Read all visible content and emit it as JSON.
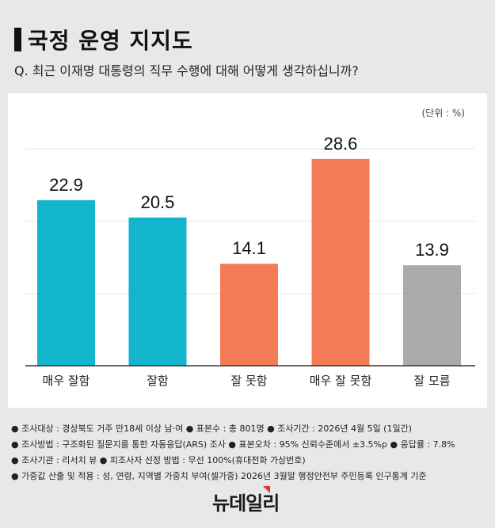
{
  "header": {
    "title": "국정 운영 지지도",
    "question": "Q. 최근 이재명 대통령의 직무 수행에 대해 어떻게 생각하십니까?"
  },
  "chart_data": {
    "type": "bar",
    "unit_label": "(단위 : %)",
    "categories": [
      "매우 잘함",
      "잘함",
      "잘 못함",
      "매우 잘 못함",
      "잘 모름"
    ],
    "values": [
      22.9,
      20.5,
      14.1,
      28.6,
      13.9
    ],
    "value_labels": [
      "22.9",
      "20.5",
      "14.1",
      "28.6",
      "13.9"
    ],
    "colors": [
      "#12b5cb",
      "#12b5cb",
      "#f47b55",
      "#f47b55",
      "#aaaaaa"
    ],
    "ylim": [
      0,
      30
    ],
    "grid": true,
    "grid_step": 10
  },
  "notes": [
    "● 조사대상 : 경상북도 거주 만18세 이상 남·여 ● 표본수 : 총 801명  ● 조사기간 : 2026년 4월 5일 (1일간)",
    "● 조사방법 : 구조화된 질문지를 통한 자동응답(ARS) 조사 ● 표본오차 : 95% 신뢰수준에서 ±3.5%p ● 응답률 : 7.8%",
    "● 조사기관 : 리서치 뷰 ● 피조사자 선정 방법 : 무선 100%(휴대전화 가상번호)",
    "● 가중값 산출 및 적용 : 성, 연령, 지역별 가중치 부여(셀가중)  2026년 3월말 행정안전부 주민등록 인구통계 기준"
  ],
  "logo": {
    "text": "뉴데일리",
    "accent": "#e8322b"
  }
}
